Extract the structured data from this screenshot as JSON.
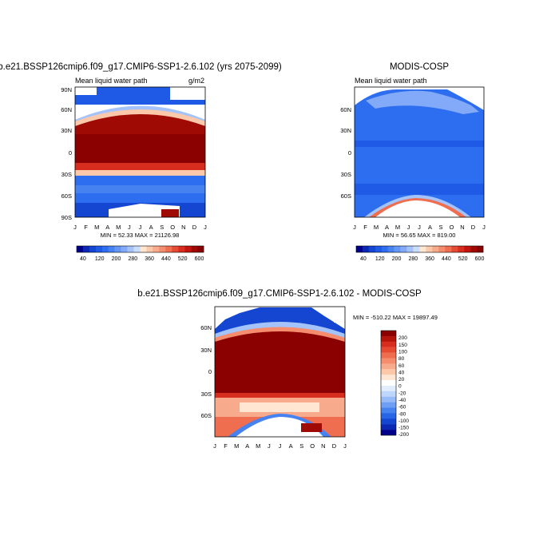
{
  "colors": {
    "abs_scale": [
      "#00008b",
      "#0a28b4",
      "#1446d2",
      "#1e5ae6",
      "#2d6ef0",
      "#4682f0",
      "#6496f5",
      "#82aaf8",
      "#a5c3fb",
      "#c8dcfd",
      "#ffe6d2",
      "#fcc8aa",
      "#f8aa8c",
      "#f58c6e",
      "#f06e50",
      "#e64b32",
      "#d72d1e",
      "#c3140f",
      "#a00a05",
      "#8b0000"
    ],
    "diff_scale": [
      "#00008b",
      "#0a28b4",
      "#1446d2",
      "#2864e6",
      "#4682f0",
      "#6e9ff5",
      "#96bbf8",
      "#bed6fb",
      "#e1ecfd",
      "#ffffff",
      "#ffe6d2",
      "#fcc8aa",
      "#f8aa8c",
      "#f58c6e",
      "#f06e50",
      "#e64b32",
      "#d72d1e",
      "#b4140a",
      "#8b0000"
    ]
  },
  "chart_data": [
    {
      "type": "heatmap",
      "title": "b.e21.BSSP126cmip6.f09_g17.CMIP6-SSP1-2.6.102 (yrs 2075-2099)",
      "subtitle_left": "Mean liquid water path",
      "subtitle_right": "g/m2",
      "x_tick_labels": [
        "J",
        "F",
        "M",
        "A",
        "M",
        "J",
        "J",
        "A",
        "S",
        "O",
        "N",
        "D",
        "J"
      ],
      "y_tick_labels": [
        "90S",
        "60S",
        "30S",
        "0",
        "30N",
        "60N",
        "90N"
      ],
      "stats": "MIN =  52.33 MAX = 21126.98",
      "colorbar_labels": [
        "40",
        "120",
        "200",
        "280",
        "360",
        "440",
        "520",
        "600"
      ]
    },
    {
      "type": "heatmap",
      "title": "MODIS-COSP",
      "subtitle_left": "Mean liquid water path",
      "x_tick_labels": [
        "J",
        "F",
        "M",
        "A",
        "M",
        "J",
        "J",
        "A",
        "S",
        "O",
        "N",
        "D",
        "J"
      ],
      "y_tick_labels": [
        "60S",
        "30S",
        "0",
        "30N",
        "60N"
      ],
      "stats": "MIN =  56.65 MAX = 819.00",
      "colorbar_labels": [
        "40",
        "120",
        "200",
        "280",
        "360",
        "440",
        "520",
        "600"
      ]
    },
    {
      "type": "heatmap",
      "title": "b.e21.BSSP126cmip6.f09_g17.CMIP6-SSP1-2.6.102 - MODIS-COSP",
      "x_tick_labels": [
        "J",
        "F",
        "M",
        "A",
        "M",
        "J",
        "J",
        "A",
        "S",
        "O",
        "N",
        "D",
        "J"
      ],
      "y_tick_labels": [
        "60S",
        "30S",
        "0",
        "30N",
        "60N"
      ],
      "stats": "MIN = -510.22 MAX = 19897.49",
      "colorbar_labels": [
        "200",
        "150",
        "100",
        "80",
        "60",
        "40",
        "20",
        "0",
        "-20",
        "-40",
        "-60",
        "-80",
        "-100",
        "-150",
        "-200"
      ]
    }
  ]
}
